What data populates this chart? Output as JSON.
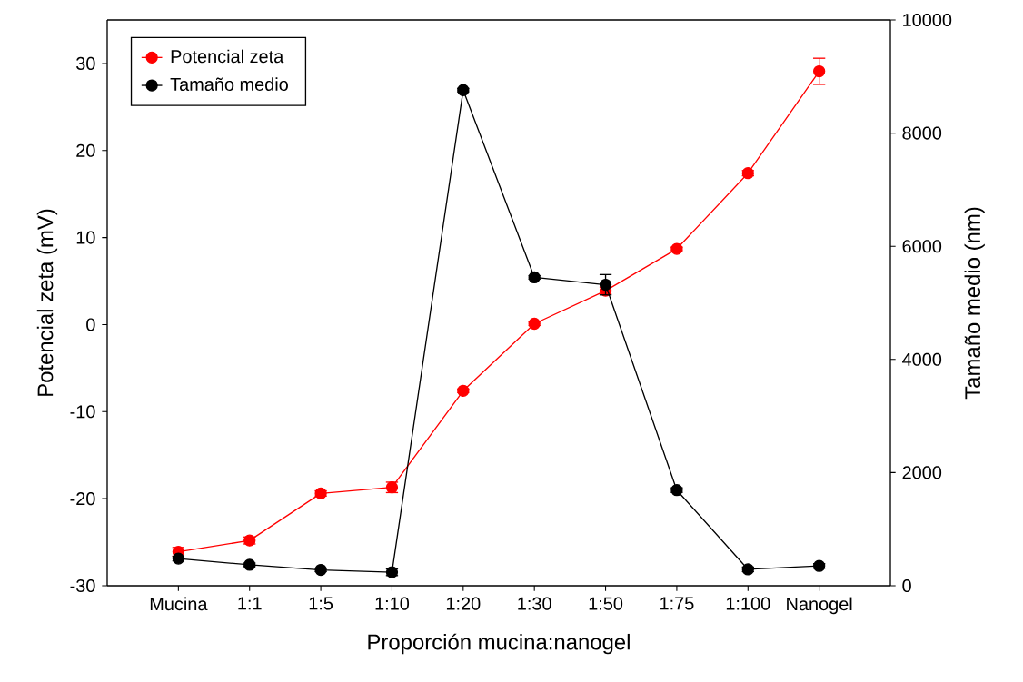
{
  "chart_data": {
    "type": "line",
    "xlabel": "Proporción mucina:nanogel",
    "ylabel": "Potencial zeta (mV)",
    "y2label": "Tamaño medio (nm)",
    "categories": [
      "Mucina",
      "1:1",
      "1:5",
      "1:10",
      "1:20",
      "1:30",
      "1:50",
      "1:75",
      "1:100",
      "Nanogel"
    ],
    "ylim": [
      -30,
      35
    ],
    "yticks": [
      -30,
      -20,
      -10,
      0,
      10,
      20,
      30
    ],
    "y2lim": [
      0,
      10000
    ],
    "y2ticks": [
      0,
      2000,
      4000,
      6000,
      8000,
      10000
    ],
    "series": [
      {
        "name": "Potencial zeta",
        "color": "#ff0000",
        "values": [
          -26.1,
          -24.8,
          -19.4,
          -18.7,
          -7.6,
          0.1,
          3.9,
          8.7,
          17.4,
          29.1
        ],
        "errors": [
          0.5,
          0.4,
          0.3,
          0.6,
          0.2,
          0.2,
          0.4,
          0.2,
          0.3,
          1.5
        ]
      },
      {
        "name": "Tamaño medio",
        "color": "#000000",
        "axis": "y2",
        "values": [
          480,
          370,
          280,
          240,
          8760,
          5450,
          5320,
          1690,
          290,
          350
        ],
        "errors": [
          40,
          30,
          30,
          60,
          30,
          30,
          180,
          40,
          40,
          40
        ]
      }
    ],
    "marker": "circle",
    "legend": "top left",
    "grid": false
  }
}
